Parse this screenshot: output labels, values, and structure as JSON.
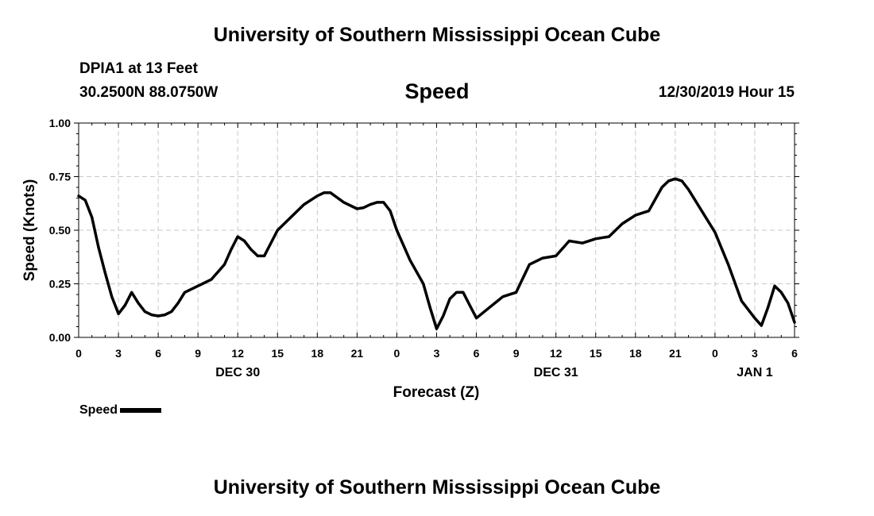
{
  "header": {
    "title_top": "University of Southern Mississippi Ocean Cube",
    "station": "DPIA1 at 13 Feet",
    "coordinates": "30.2500N 88.0750W",
    "parameter": "Speed",
    "datetime": "12/30/2019 Hour 15"
  },
  "footer": {
    "title_bottom": "University of Southern Mississippi Ocean Cube"
  },
  "legend": {
    "label": "Speed",
    "color": "#000000"
  },
  "chart_data": {
    "type": "line",
    "title": "Speed",
    "xlabel": "Forecast (Z)",
    "ylabel": "Speed (Knots)",
    "ylim": [
      0,
      1
    ],
    "y_ticks": [
      "0.00",
      "0.25",
      "0.50",
      "0.75",
      "1.00"
    ],
    "x_tick_labels": [
      "0",
      "3",
      "6",
      "9",
      "12",
      "15",
      "18",
      "21",
      "0",
      "3",
      "6",
      "9",
      "12",
      "15",
      "18",
      "21",
      "0",
      "3",
      "6"
    ],
    "date_labels": [
      {
        "label": "DEC 30",
        "tick": 12
      },
      {
        "label": "DEC 31",
        "tick": 12
      },
      {
        "label": "JAN 1",
        "tick": 3
      }
    ],
    "grid": true,
    "legend_position": "bottom-left",
    "series": [
      {
        "name": "Speed",
        "color": "#000000",
        "x_hours_from_start": [
          0,
          0.5,
          1,
          1.5,
          2,
          2.5,
          3,
          3.5,
          4,
          4.5,
          5,
          5.5,
          6,
          6.5,
          7,
          7.5,
          8,
          9,
          10,
          11,
          11.5,
          12,
          12.5,
          13,
          13.5,
          14,
          15,
          16,
          17,
          18,
          18.5,
          19,
          20,
          21,
          21.5,
          22,
          22.5,
          23,
          23.5,
          24,
          25,
          26,
          26.5,
          27,
          27.5,
          28,
          28.5,
          29,
          29.5,
          30,
          31,
          32,
          33,
          34,
          35,
          36,
          37,
          38,
          39,
          40,
          41,
          42,
          43,
          44,
          44.5,
          45,
          45.5,
          46,
          47,
          48,
          49,
          50,
          51,
          51.5,
          52,
          52.5,
          53,
          53.5,
          54
        ],
        "values": [
          0.66,
          0.64,
          0.56,
          0.42,
          0.3,
          0.19,
          0.11,
          0.15,
          0.21,
          0.16,
          0.12,
          0.105,
          0.1,
          0.105,
          0.12,
          0.16,
          0.21,
          0.24,
          0.27,
          0.34,
          0.41,
          0.47,
          0.45,
          0.41,
          0.38,
          0.38,
          0.5,
          0.56,
          0.62,
          0.66,
          0.675,
          0.675,
          0.63,
          0.6,
          0.605,
          0.62,
          0.63,
          0.63,
          0.59,
          0.5,
          0.36,
          0.25,
          0.14,
          0.04,
          0.1,
          0.18,
          0.21,
          0.21,
          0.15,
          0.09,
          0.14,
          0.19,
          0.21,
          0.34,
          0.37,
          0.38,
          0.45,
          0.44,
          0.46,
          0.47,
          0.53,
          0.57,
          0.59,
          0.7,
          0.73,
          0.74,
          0.73,
          0.69,
          0.59,
          0.49,
          0.34,
          0.17,
          0.09,
          0.055,
          0.14,
          0.24,
          0.21,
          0.16,
          0.07
        ]
      }
    ]
  }
}
